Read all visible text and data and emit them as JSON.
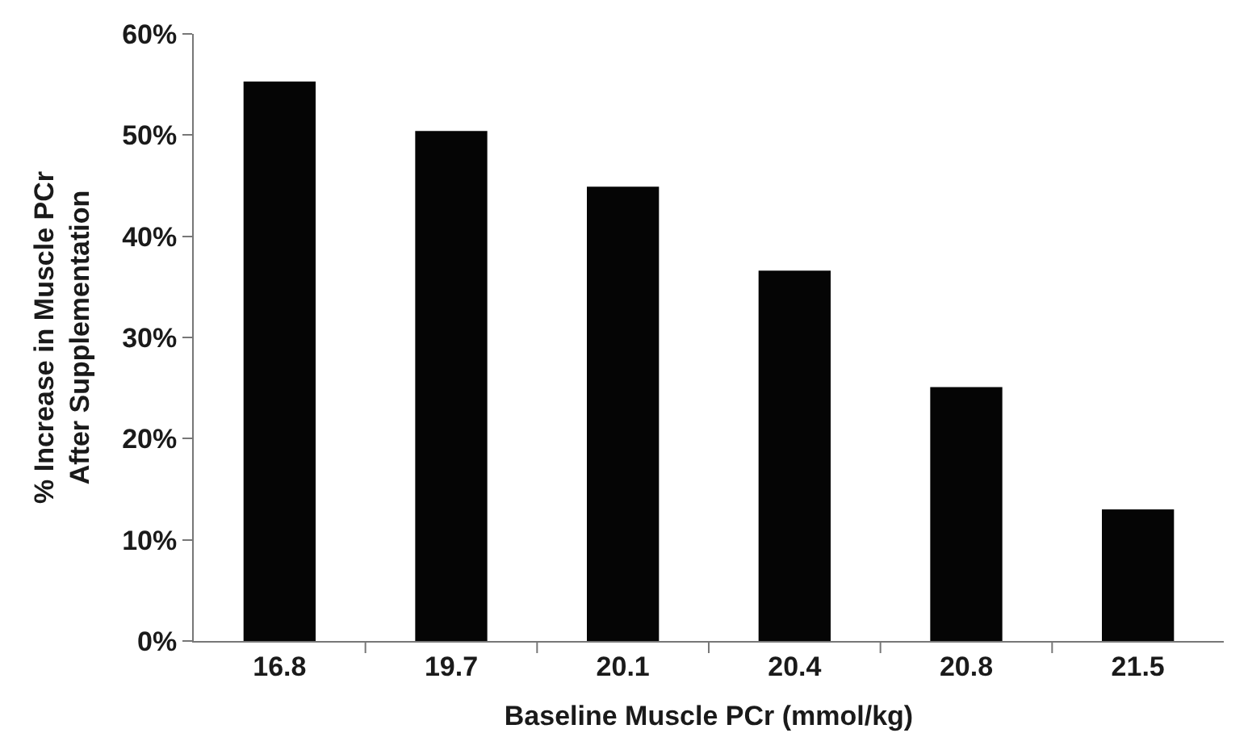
{
  "chart_data": {
    "type": "bar",
    "xlabel": "Baseline Muscle PCr (mmol/kg)",
    "ylabel": "% Increase in Muscle PCr\nAfter Supplementation",
    "categories": [
      "16.8",
      "19.7",
      "20.1",
      "20.4",
      "20.8",
      "21.5"
    ],
    "values": [
      55.3,
      50.4,
      44.9,
      36.6,
      25.1,
      13.0
    ],
    "color": "#050505",
    "ylim": [
      0,
      60
    ],
    "yticks": [
      {
        "value": 0,
        "label": "0%"
      },
      {
        "value": 10,
        "label": "10%"
      },
      {
        "value": 20,
        "label": "20%"
      },
      {
        "value": 30,
        "label": "30%"
      },
      {
        "value": 40,
        "label": "40%"
      },
      {
        "value": 50,
        "label": "50%"
      },
      {
        "value": 60,
        "label": "60%"
      }
    ],
    "grid": null
  }
}
